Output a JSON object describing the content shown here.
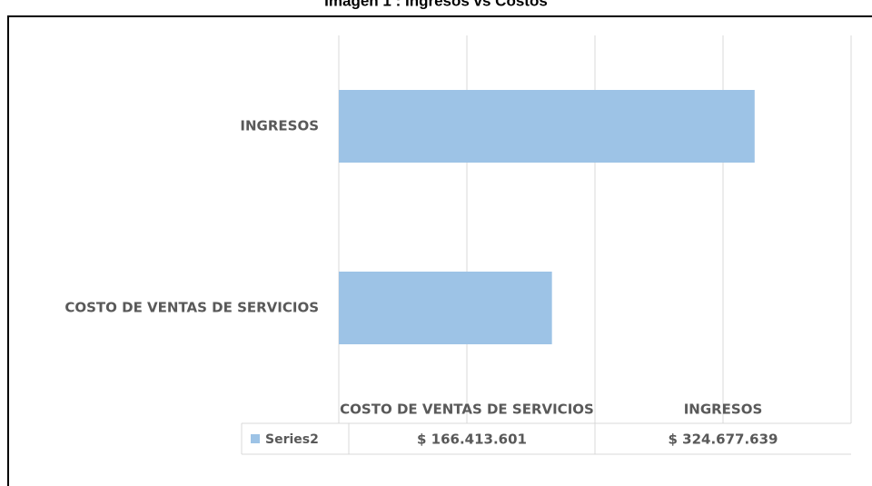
{
  "chart_data": {
    "type": "hbar",
    "title": "Imagen 1 : Ingresos vs Costos",
    "categories": [
      "COSTO DE VENTAS DE SERVICIOS",
      "INGRESOS"
    ],
    "series": [
      {
        "name": "Series2",
        "color": "#9dc3e6",
        "values": [
          166413601,
          324677639
        ],
        "value_labels": [
          "$ 166.413.601",
          "$ 324.677.639"
        ]
      }
    ],
    "xlim": [
      0,
      400000000
    ],
    "xticks": [
      0,
      100000000,
      200000000,
      300000000,
      400000000
    ],
    "grid": true
  }
}
